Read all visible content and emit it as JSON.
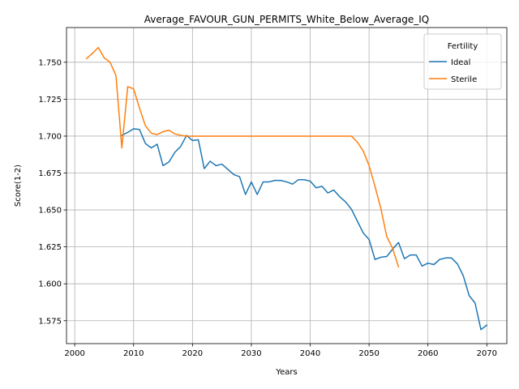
{
  "chart_data": {
    "type": "line",
    "title": "Average_FAVOUR_GUN_PERMITS_White_Below_Average_IQ",
    "xlabel": "Years",
    "ylabel": "Score(1-2)",
    "xlim": [
      1998.6,
      2073.4
    ],
    "ylim": [
      1.5595,
      1.7735
    ],
    "x_ticks": [
      2000,
      2010,
      2020,
      2030,
      2040,
      2050,
      2060,
      2070
    ],
    "x_tick_labels": [
      "2000",
      "2010",
      "2020",
      "2030",
      "2040",
      "2050",
      "2060",
      "2070"
    ],
    "y_ticks": [
      1.575,
      1.6,
      1.625,
      1.65,
      1.675,
      1.7,
      1.725,
      1.75
    ],
    "y_tick_labels": [
      "1.575",
      "1.600",
      "1.625",
      "1.650",
      "1.675",
      "1.700",
      "1.725",
      "1.750"
    ],
    "grid": true,
    "legend": {
      "title": "Fertility",
      "placement": "top-right"
    },
    "series": [
      {
        "name": "Ideal",
        "color": "#1f77b4",
        "x": [
          2008,
          2009,
          2010,
          2011,
          2012,
          2013,
          2014,
          2015,
          2016,
          2017,
          2018,
          2019,
          2020,
          2021,
          2022,
          2023,
          2024,
          2025,
          2026,
          2027,
          2028,
          2029,
          2030,
          2031,
          2032,
          2033,
          2034,
          2035,
          2036,
          2037,
          2038,
          2039,
          2040,
          2041,
          2042,
          2043,
          2044,
          2045,
          2046,
          2047,
          2048,
          2049,
          2050,
          2051,
          2052,
          2053,
          2054,
          2055,
          2056,
          2057,
          2058,
          2059,
          2060,
          2061,
          2062,
          2063,
          2064,
          2065,
          2066,
          2067,
          2068,
          2069,
          2070
        ],
        "values": [
          1.7005,
          1.7025,
          1.705,
          1.7045,
          1.695,
          1.692,
          1.6945,
          1.68,
          1.6825,
          1.689,
          1.693,
          1.7005,
          1.697,
          1.6975,
          1.678,
          1.683,
          1.68,
          1.681,
          1.6775,
          1.674,
          1.6725,
          1.6605,
          1.669,
          1.6605,
          1.669,
          1.669,
          1.67,
          1.67,
          1.669,
          1.6675,
          1.6705,
          1.6705,
          1.6695,
          1.665,
          1.666,
          1.6615,
          1.6635,
          1.659,
          1.6555,
          1.6505,
          1.6425,
          1.6345,
          1.63,
          1.6165,
          1.618,
          1.6185,
          1.6235,
          1.628,
          1.617,
          1.6195,
          1.6195,
          1.612,
          1.614,
          1.613,
          1.6165,
          1.6175,
          1.6175,
          1.6135,
          1.6055,
          1.592,
          1.587,
          1.569,
          1.572
        ]
      },
      {
        "name": "Sterile",
        "color": "#ff7f0e",
        "x": [
          2002,
          2003,
          2004,
          2005,
          2006,
          2007,
          2008,
          2009,
          2010,
          2011,
          2012,
          2013,
          2014,
          2015,
          2016,
          2017,
          2018,
          2019,
          2020,
          2021,
          2022,
          2023,
          2024,
          2025,
          2026,
          2027,
          2028,
          2029,
          2030,
          2031,
          2032,
          2033,
          2034,
          2035,
          2036,
          2037,
          2038,
          2039,
          2040,
          2041,
          2042,
          2043,
          2044,
          2045,
          2046,
          2047,
          2048,
          2049,
          2050,
          2051,
          2052,
          2053,
          2054,
          2055
        ],
        "values": [
          1.7525,
          1.756,
          1.76,
          1.753,
          1.75,
          1.741,
          1.692,
          1.7335,
          1.732,
          1.719,
          1.707,
          1.702,
          1.701,
          1.703,
          1.704,
          1.7015,
          1.7005,
          1.7,
          1.7,
          1.7,
          1.7,
          1.7,
          1.7,
          1.7,
          1.7,
          1.7,
          1.7,
          1.7,
          1.7,
          1.7,
          1.7,
          1.7,
          1.7,
          1.7,
          1.7,
          1.7,
          1.7,
          1.7,
          1.7,
          1.7,
          1.7,
          1.7,
          1.7,
          1.7,
          1.7,
          1.7,
          1.696,
          1.69,
          1.68,
          1.666,
          1.651,
          1.632,
          1.624,
          1.6115
        ]
      }
    ]
  }
}
